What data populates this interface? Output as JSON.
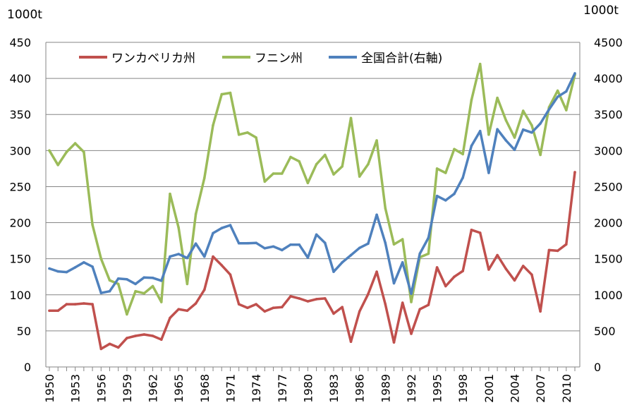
{
  "chart_data": {
    "type": "line",
    "y_unit_left": "1000t",
    "y_unit_right": "1000t",
    "x": [
      1950,
      1951,
      1952,
      1953,
      1954,
      1955,
      1956,
      1957,
      1958,
      1959,
      1960,
      1961,
      1962,
      1963,
      1964,
      1965,
      1966,
      1967,
      1968,
      1969,
      1970,
      1971,
      1972,
      1973,
      1974,
      1975,
      1976,
      1977,
      1978,
      1979,
      1980,
      1981,
      1982,
      1983,
      1984,
      1985,
      1986,
      1987,
      1988,
      1989,
      1990,
      1991,
      1992,
      1993,
      1994,
      1995,
      1996,
      1997,
      1998,
      1999,
      2000,
      2001,
      2002,
      2003,
      2004,
      2005,
      2006,
      2007,
      2008,
      2009,
      2010,
      2011
    ],
    "x_tick_labels": [
      "1950",
      "1953",
      "1956",
      "1959",
      "1962",
      "1965",
      "1968",
      "1971",
      "1974",
      "1977",
      "1980",
      "1983",
      "1986",
      "1989",
      "1992",
      "1995",
      "1998",
      "2001",
      "2004",
      "2007",
      "2010"
    ],
    "ylim_left": [
      0,
      450
    ],
    "yticks_left": [
      "0",
      "50",
      "100",
      "150",
      "200",
      "250",
      "300",
      "350",
      "400",
      "450"
    ],
    "ylim_right": [
      0,
      4500
    ],
    "yticks_right": [
      "0",
      "500",
      "1000",
      "1500",
      "2000",
      "2500",
      "3000",
      "3500",
      "4000",
      "4500"
    ],
    "grid": "horizontal",
    "legend_placement": "top-left",
    "series": [
      {
        "name": "ワンカベリカ州",
        "axis": "left",
        "color": "#c0504d",
        "values": [
          78,
          78,
          87,
          87,
          88,
          87,
          25,
          32,
          27,
          40,
          43,
          45,
          43,
          38,
          68,
          80,
          78,
          88,
          107,
          153,
          141,
          128,
          87,
          82,
          87,
          77,
          82,
          83,
          98,
          95,
          91,
          94,
          95,
          74,
          83,
          35,
          77,
          101,
          132,
          87,
          34,
          89,
          46,
          80,
          86,
          138,
          112,
          125,
          133,
          190,
          186,
          135,
          155,
          136,
          120,
          140,
          128,
          77,
          162,
          161,
          170,
          270
        ]
      },
      {
        "name": "フニン州",
        "axis": "left",
        "color": "#9bbb59",
        "values": [
          300,
          280,
          298,
          310,
          298,
          197,
          150,
          120,
          115,
          73,
          105,
          102,
          112,
          90,
          240,
          193,
          115,
          212,
          262,
          335,
          378,
          380,
          322,
          325,
          318,
          257,
          268,
          268,
          291,
          285,
          255,
          281,
          294,
          267,
          278,
          345,
          264,
          281,
          314,
          220,
          170,
          177,
          90,
          152,
          157,
          275,
          269,
          302,
          295,
          370,
          420,
          322,
          373,
          342,
          318,
          355,
          335,
          294,
          360,
          383,
          356,
          405
        ]
      },
      {
        "name": "全国合計(右軸)",
        "axis": "right",
        "color": "#4f81bd",
        "values": [
          1365,
          1325,
          1315,
          1380,
          1450,
          1390,
          1025,
          1050,
          1225,
          1215,
          1150,
          1240,
          1235,
          1195,
          1530,
          1565,
          1510,
          1710,
          1530,
          1855,
          1925,
          1965,
          1715,
          1715,
          1720,
          1645,
          1670,
          1620,
          1695,
          1695,
          1515,
          1835,
          1720,
          1320,
          1450,
          1550,
          1650,
          1710,
          2110,
          1720,
          1160,
          1450,
          1015,
          1570,
          1790,
          2370,
          2310,
          2400,
          2625,
          3065,
          3270,
          2690,
          3295,
          3140,
          3010,
          3290,
          3250,
          3375,
          3570,
          3745,
          3820,
          4070
        ]
      }
    ]
  }
}
